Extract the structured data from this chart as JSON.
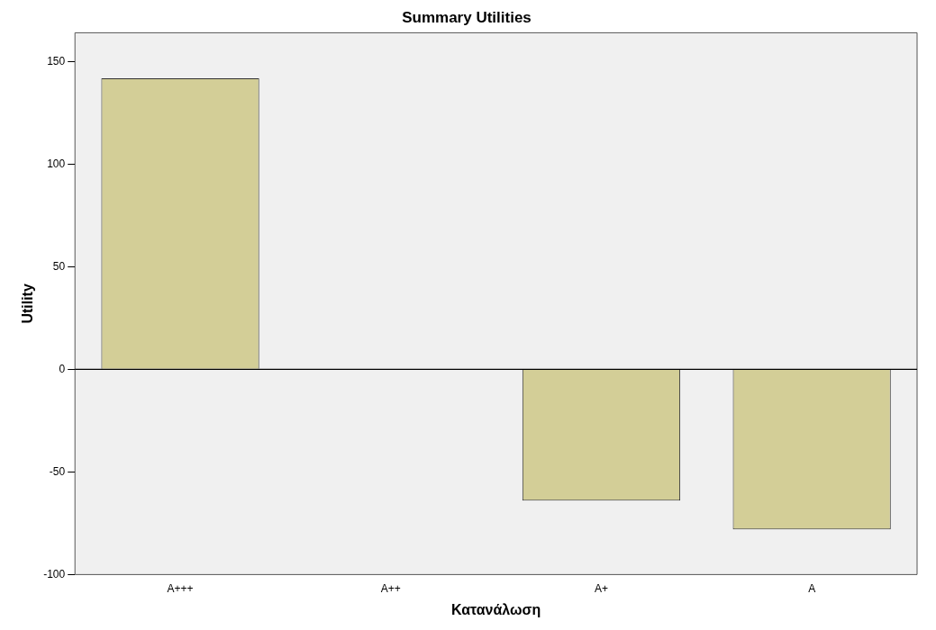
{
  "chart_data": {
    "type": "bar",
    "title": "Summary Utilities",
    "xlabel": "Κατανάλωση",
    "ylabel": "Utility",
    "categories": [
      "A+++",
      "A++",
      "A+",
      "A"
    ],
    "values": [
      141.8,
      0,
      -64,
      -78
    ],
    "color": "#d3ce97",
    "ylim": [
      -100,
      164
    ],
    "yticks": [
      -100,
      -50,
      0,
      50,
      100,
      150
    ],
    "grid": false,
    "legend": false,
    "ref_lines": [
      {
        "axis": "y",
        "value": 0,
        "color": "#000000"
      }
    ]
  }
}
